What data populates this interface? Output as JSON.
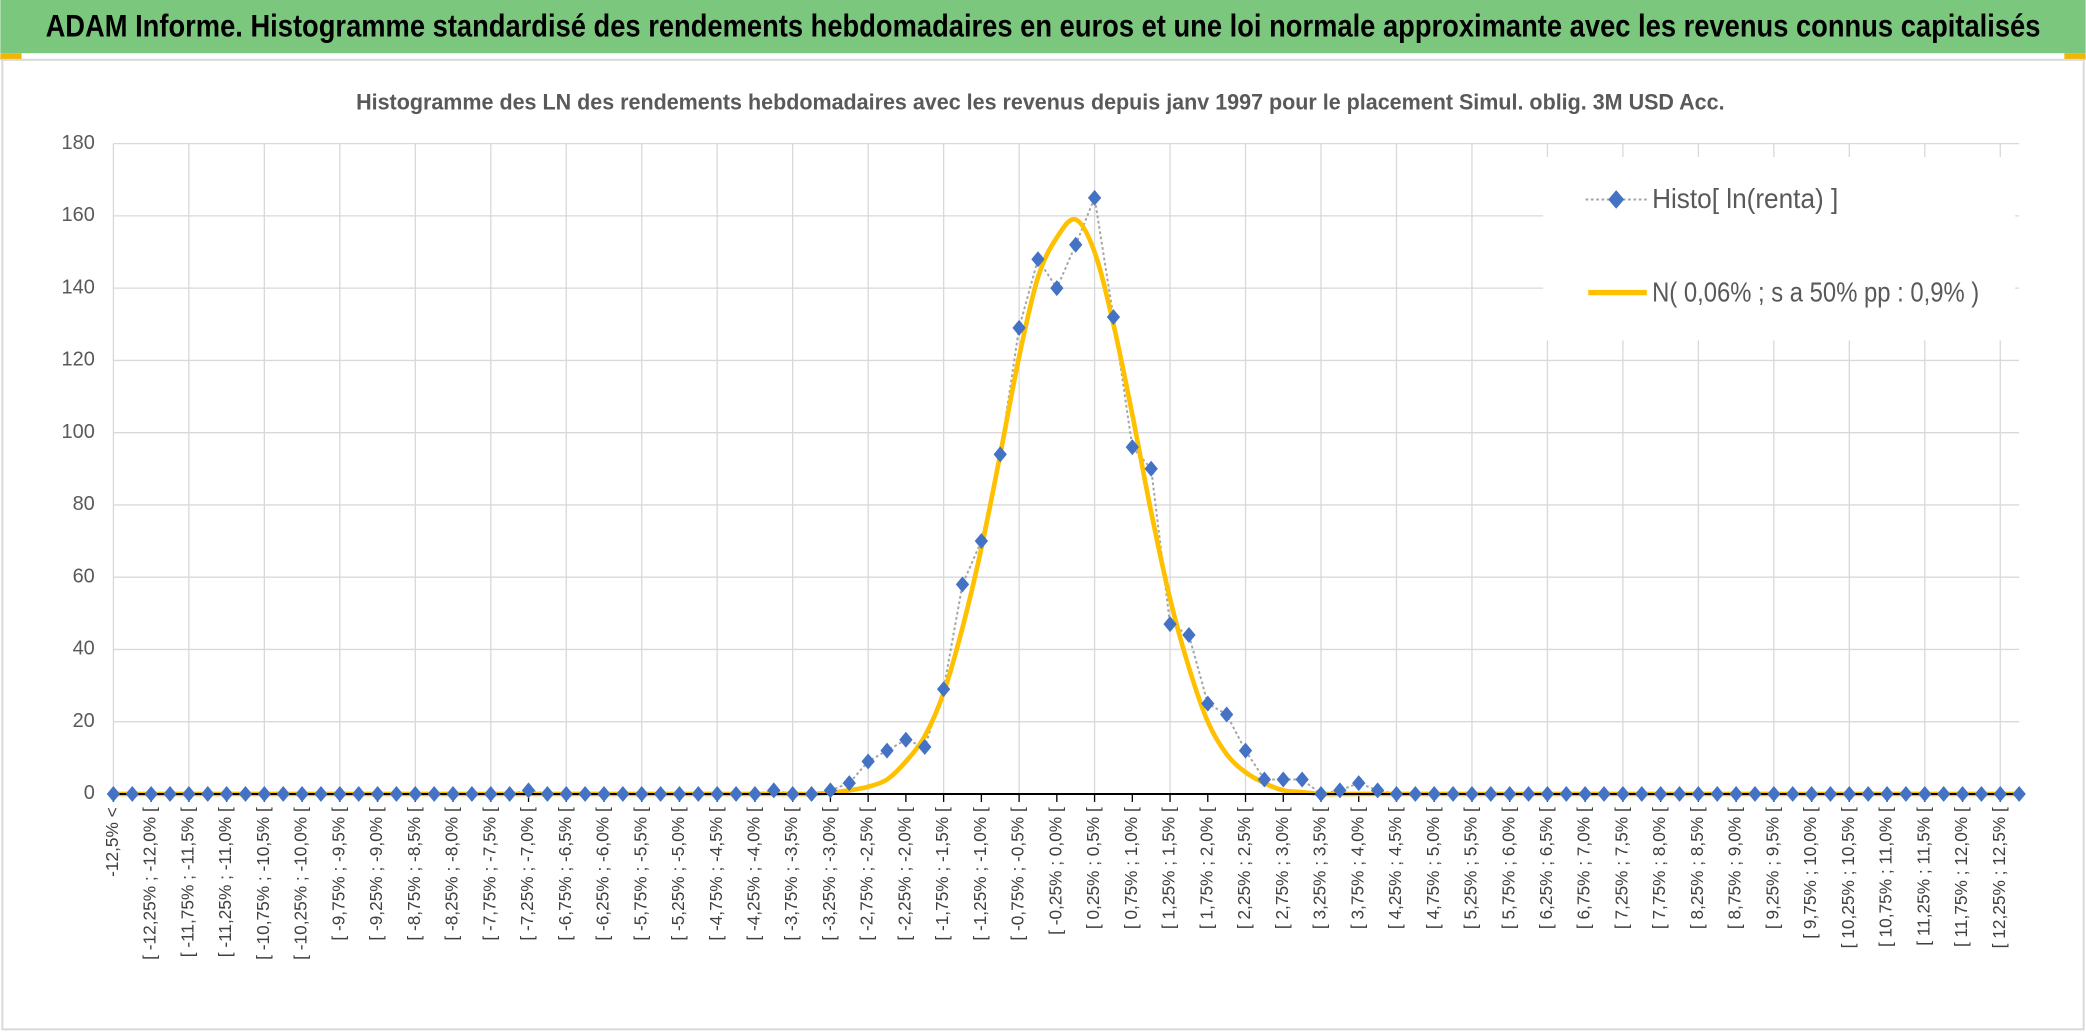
{
  "header": {
    "title": "ADAM Informe. Histogramme standardisé des rendements hebdomadaires en euros et une loi normale approximante avec les revenus connus capitalisés"
  },
  "chart_data": {
    "type": "line",
    "title": "Histogramme des LN des rendements hebdomadaires avec les revenus depuis janv 1997 pour le placement Simul. oblig. 3M USD Acc.",
    "categories": [
      "-12,5% <",
      null,
      "[ -12,25% ; -12,0% [",
      null,
      "[ -11,75% ; -11,5% [",
      null,
      "[ -11,25% ; -11,0% [",
      null,
      "[ -10,75% ; -10,5% [",
      null,
      "[ -10,25% ; -10,0% [",
      null,
      "[ -9,75% ; -9,5% [",
      null,
      "[ -9,25% ; -9,0% [",
      null,
      "[ -8,75% ; -8,5% [",
      null,
      "[ -8,25% ; -8,0% [",
      null,
      "[ -7,75% ; -7,5% [",
      null,
      "[ -7,25% ; -7,0% [",
      null,
      "[ -6,75% ; -6,5% [",
      null,
      "[ -6,25% ; -6,0% [",
      null,
      "[ -5,75% ; -5,5% [",
      null,
      "[ -5,25% ; -5,0% [",
      null,
      "[ -4,75% ; -4,5% [",
      null,
      "[ -4,25% ; -4,0% [",
      null,
      "[ -3,75% ; -3,5% [",
      null,
      "[ -3,25% ; -3,0% [",
      null,
      "[ -2,75% ; -2,5% [",
      null,
      "[ -2,25% ; -2,0% [",
      null,
      "[ -1,75% ; -1,5% [",
      null,
      "[ -1,25% ; -1,0% [",
      null,
      "[ -0,75% ; -0,5% [",
      null,
      "[ -0,25% ; 0,0% [",
      null,
      "[ 0,25% ; 0,5% [",
      null,
      "[ 0,75% ; 1,0% [",
      null,
      "[ 1,25% ; 1,5% [",
      null,
      "[ 1,75% ; 2,0% [",
      null,
      "[ 2,25% ; 2,5% [",
      null,
      "[ 2,75% ; 3,0% [",
      null,
      "[ 3,25% ; 3,5% [",
      null,
      "[ 3,75% ; 4,0% [",
      null,
      "[ 4,25% ; 4,5% [",
      null,
      "[ 4,75% ; 5,0% [",
      null,
      "[ 5,25% ; 5,5% [",
      null,
      "[ 5,75% ; 6,0% [",
      null,
      "[ 6,25% ; 6,5% [",
      null,
      "[ 6,75% ; 7,0% [",
      null,
      "[ 7,25% ; 7,5% [",
      null,
      "[ 7,75% ; 8,0% [",
      null,
      "[ 8,25% ; 8,5% [",
      null,
      "[ 8,75% ; 9,0% [",
      null,
      "[ 9,25% ; 9,5% [",
      null,
      "[ 9,75% ; 10,0% [",
      null,
      "[ 10,25% ; 10,5% [",
      null,
      "[ 10,75% ; 11,0% [",
      null,
      "[ 11,25% ; 11,5% [",
      null,
      "[ 11,75% ; 12,0% [",
      null,
      "[ 12,25% ; 12,5% [",
      null
    ],
    "series": [
      {
        "name": "Histo[ ln(renta) ]",
        "color": "#4472c4",
        "line_color": "#a5a5a5",
        "values": [
          0,
          0,
          0,
          0,
          0,
          0,
          0,
          0,
          0,
          0,
          0,
          0,
          0,
          0,
          0,
          0,
          0,
          0,
          0,
          0,
          0,
          0,
          1,
          0,
          0,
          0,
          0,
          0,
          0,
          0,
          0,
          0,
          0,
          0,
          0,
          1,
          0,
          0,
          1,
          3,
          9,
          12,
          15,
          13,
          29,
          58,
          70,
          94,
          129,
          148,
          140,
          152,
          165,
          132,
          96,
          90,
          47,
          44,
          25,
          22,
          12,
          4,
          4,
          4,
          0,
          1,
          3,
          1,
          0,
          0,
          0,
          0,
          0,
          0,
          0,
          0,
          0,
          0,
          0,
          0,
          0,
          0,
          0,
          0,
          0,
          0,
          0,
          0,
          0,
          0,
          0,
          0,
          0,
          0,
          0,
          0,
          0,
          0,
          0,
          0,
          0,
          0
        ]
      },
      {
        "name": "N( 0,06% ; s a 50% pp : 0,9% )",
        "color": "#ffc000",
        "values": [
          0,
          0,
          0,
          0,
          0,
          0,
          0,
          0,
          0,
          0,
          0,
          0,
          0,
          0,
          0,
          0,
          0,
          0,
          0,
          0,
          0,
          0,
          0,
          0,
          0,
          0,
          0,
          0,
          0,
          0,
          0,
          0,
          0,
          0,
          0,
          0,
          0,
          0,
          0.3,
          1,
          2,
          4,
          9,
          16,
          28,
          46,
          68,
          94,
          121,
          143,
          154,
          159,
          150,
          130,
          105,
          78,
          54,
          35,
          20,
          11,
          6,
          3,
          1,
          0.5,
          0,
          0,
          0,
          0,
          0,
          0,
          0,
          0,
          0,
          0,
          0,
          0,
          0,
          0,
          0,
          0,
          0,
          0,
          0,
          0,
          0,
          0,
          0,
          0,
          0,
          0,
          0,
          0,
          0,
          0,
          0,
          0,
          0,
          0,
          0,
          0,
          0,
          0
        ]
      }
    ],
    "ylim": [
      0,
      180
    ],
    "yticks": [
      0,
      20,
      40,
      60,
      80,
      100,
      120,
      140,
      160,
      180
    ],
    "grid": true,
    "legend": "upper right"
  }
}
